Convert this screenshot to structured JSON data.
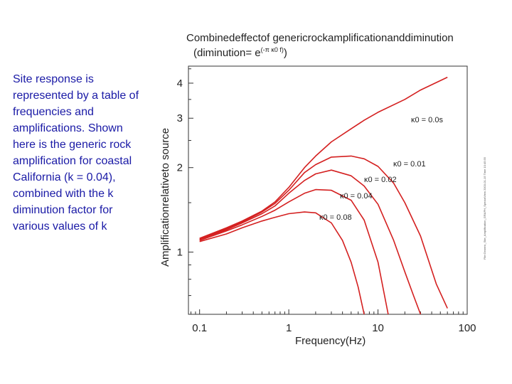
{
  "side_text": "Site response is represented by a table of frequencies and amplifications. Shown here is the generic rock amplification for coastal California (k = 0.04), combined with the k diminution factor for various values of k",
  "chart_data": {
    "type": "line",
    "title_line1": "Combinedeffectof genericrockamplificationanddiminution",
    "title_line2_prefix": "(diminution",
    "title_line2_eq": "= e",
    "title_line2_exp": "(-π κ0 f)",
    "title_line2_suffix": ")",
    "xlabel": "Frequency(Hz)",
    "ylabel": "Amplificationrelativeto source",
    "x_scale": "log",
    "y_scale": "log",
    "xlim": [
      0.075,
      100
    ],
    "ylim": [
      0.6,
      4.6
    ],
    "x_ticks": [
      {
        "value": 0.1,
        "label": "0.1"
      },
      {
        "value": 1,
        "label": "1"
      },
      {
        "value": 10,
        "label": "10"
      },
      {
        "value": 100,
        "label": "100"
      }
    ],
    "y_ticks": [
      {
        "value": 1,
        "label": "1"
      },
      {
        "value": 2,
        "label": "2"
      },
      {
        "value": 3,
        "label": "3"
      },
      {
        "value": 4,
        "label": "4"
      }
    ],
    "line_color": "#d42020",
    "series": [
      {
        "label_text": "κ0 = 0.0s",
        "x": [
          0.1,
          0.2,
          0.3,
          0.5,
          0.7,
          1,
          1.5,
          2,
          3,
          5,
          7,
          10,
          20,
          30,
          60
        ],
        "y": [
          1.12,
          1.22,
          1.29,
          1.4,
          1.51,
          1.7,
          2.0,
          2.2,
          2.47,
          2.75,
          2.95,
          3.15,
          3.5,
          3.78,
          4.2
        ]
      },
      {
        "label_text": "κ0 = 0.01",
        "x": [
          0.1,
          0.2,
          0.3,
          0.5,
          0.7,
          1,
          1.5,
          2,
          3,
          5,
          7,
          10,
          15,
          20,
          30,
          45,
          60
        ],
        "y": [
          1.11,
          1.21,
          1.28,
          1.39,
          1.49,
          1.66,
          1.92,
          2.05,
          2.18,
          2.2,
          2.15,
          2.02,
          1.76,
          1.5,
          1.14,
          0.77,
          0.63
        ]
      },
      {
        "label_text": "κ0 = 0.02",
        "x": [
          0.1,
          0.2,
          0.3,
          0.5,
          0.7,
          1,
          1.5,
          2,
          3,
          5,
          7,
          10,
          15,
          20,
          25,
          30
        ],
        "y": [
          1.11,
          1.2,
          1.27,
          1.37,
          1.46,
          1.62,
          1.8,
          1.9,
          1.96,
          1.87,
          1.72,
          1.48,
          1.1,
          0.85,
          0.7,
          0.6
        ]
      },
      {
        "label_text": "κ0 = 0.04",
        "x": [
          0.1,
          0.2,
          0.3,
          0.5,
          0.7,
          1,
          1.5,
          2,
          3,
          5,
          7,
          10,
          13
        ],
        "y": [
          1.1,
          1.19,
          1.25,
          1.34,
          1.41,
          1.51,
          1.62,
          1.67,
          1.66,
          1.53,
          1.3,
          0.92,
          0.6
        ]
      },
      {
        "label_text": "κ0 = 0.08",
        "x": [
          0.1,
          0.2,
          0.3,
          0.5,
          0.7,
          1,
          1.5,
          2,
          3,
          4,
          5,
          6,
          7
        ],
        "y": [
          1.09,
          1.16,
          1.22,
          1.29,
          1.33,
          1.37,
          1.39,
          1.38,
          1.27,
          1.1,
          0.92,
          0.75,
          0.6
        ]
      }
    ],
    "curve_labels": [
      {
        "text": "κ0 = 0.0s",
        "series_index": 0
      },
      {
        "text": "κ0 = 0.01",
        "series_index": 1
      },
      {
        "text": "κ0 = 0.02",
        "series_index": 2
      },
      {
        "text": "κ0 = 0.04",
        "series_index": 3
      },
      {
        "text": "κ0 = 0.08",
        "series_index": 4
      }
    ],
    "side_stamp": "File:Generic_Site_Amplification_GRAPH_SpecialView 2003-01-15 Time 10:45:55"
  }
}
